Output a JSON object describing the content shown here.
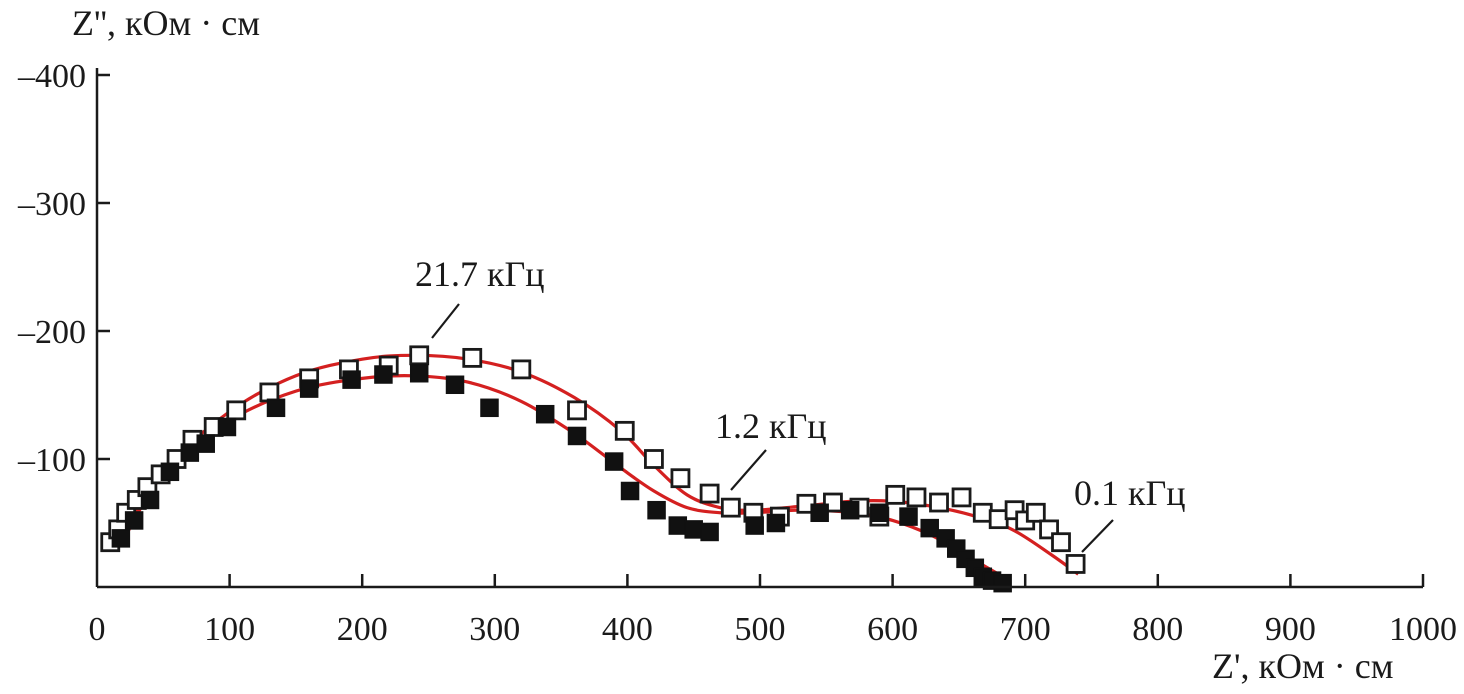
{
  "chart_data": {
    "type": "scatter",
    "title": "",
    "xlabel": "Z', кОм · см",
    "ylabel": "Z'', кОм · см",
    "xlim": [
      0,
      1000
    ],
    "ylim": [
      0,
      -400
    ],
    "x_ticks": [
      0,
      100,
      200,
      300,
      400,
      500,
      600,
      700,
      800,
      900,
      1000
    ],
    "y_ticks": [
      -100,
      -200,
      -300,
      -400
    ],
    "x_tick_labels": [
      "0",
      "100",
      "200",
      "300",
      "400",
      "500",
      "600",
      "700",
      "800",
      "900",
      "1000"
    ],
    "y_tick_labels": [
      "–100",
      "–200",
      "–300",
      "–400"
    ],
    "grid": false,
    "annotations": [
      {
        "text": "21.7 кГц",
        "x": 250,
        "y": -200
      },
      {
        "text": "1.2 кГц",
        "x": 475,
        "y": -75
      },
      {
        "text": "0.1 кГц",
        "x": 740,
        "y": -20
      }
    ],
    "series": [
      {
        "marker": "open-square",
        "x": [
          10,
          16,
          22,
          30,
          38,
          48,
          60,
          72,
          88,
          105,
          130,
          160,
          190,
          220,
          243,
          283,
          320,
          362,
          398,
          420,
          440,
          462,
          478,
          495,
          515,
          535,
          555,
          575,
          590,
          602,
          618,
          635,
          652,
          668,
          680,
          692,
          700,
          708,
          718,
          727,
          738
        ],
        "y": [
          -35,
          -45,
          -58,
          -68,
          -78,
          -88,
          -100,
          -115,
          -125,
          -138,
          -152,
          -163,
          -170,
          -173,
          -181,
          -179,
          -170,
          -138,
          -122,
          -100,
          -85,
          -73,
          -62,
          -58,
          -55,
          -65,
          -66,
          -62,
          -55,
          -72,
          -70,
          -66,
          -70,
          -58,
          -53,
          -60,
          -52,
          -58,
          -45,
          -35,
          -18
        ]
      },
      {
        "marker": "filled-square",
        "x": [
          18,
          28,
          40,
          55,
          70,
          82,
          98,
          135,
          160,
          192,
          216,
          243,
          270,
          296,
          338,
          362,
          390,
          402,
          422,
          438,
          450,
          462,
          496,
          512,
          545,
          568,
          590,
          612,
          628,
          640,
          648,
          655,
          662,
          668,
          675,
          683
        ],
        "y": [
          -38,
          -52,
          -68,
          -90,
          -105,
          -112,
          -125,
          -140,
          -155,
          -162,
          -166,
          -167,
          -158,
          -140,
          -135,
          -118,
          -98,
          -75,
          -60,
          -48,
          -45,
          -43,
          -48,
          -50,
          -58,
          -60,
          -58,
          -55,
          -46,
          -38,
          -30,
          -22,
          -15,
          -8,
          -5,
          -3
        ]
      }
    ],
    "fit_curves": [
      {
        "x": [
          12,
          50,
          100,
          150,
          200,
          240,
          280,
          320,
          360,
          395,
          420,
          445,
          470,
          495,
          530,
          570,
          600,
          630,
          660,
          690,
          720,
          740
        ],
        "y": [
          -28,
          -90,
          -137,
          -165,
          -178,
          -181,
          -178,
          -168,
          -148,
          -122,
          -95,
          -72,
          -62,
          -60,
          -63,
          -67,
          -67,
          -63,
          -56,
          -45,
          -25,
          -10
        ]
      },
      {
        "x": [
          18,
          50,
          100,
          150,
          200,
          240,
          280,
          320,
          360,
          395,
          420,
          445,
          470,
          495,
          530,
          570,
          600,
          630,
          660,
          680
        ],
        "y": [
          -33,
          -88,
          -130,
          -153,
          -163,
          -165,
          -160,
          -145,
          -120,
          -93,
          -75,
          -62,
          -58,
          -58,
          -60,
          -58,
          -52,
          -40,
          -22,
          -10
        ]
      }
    ]
  }
}
